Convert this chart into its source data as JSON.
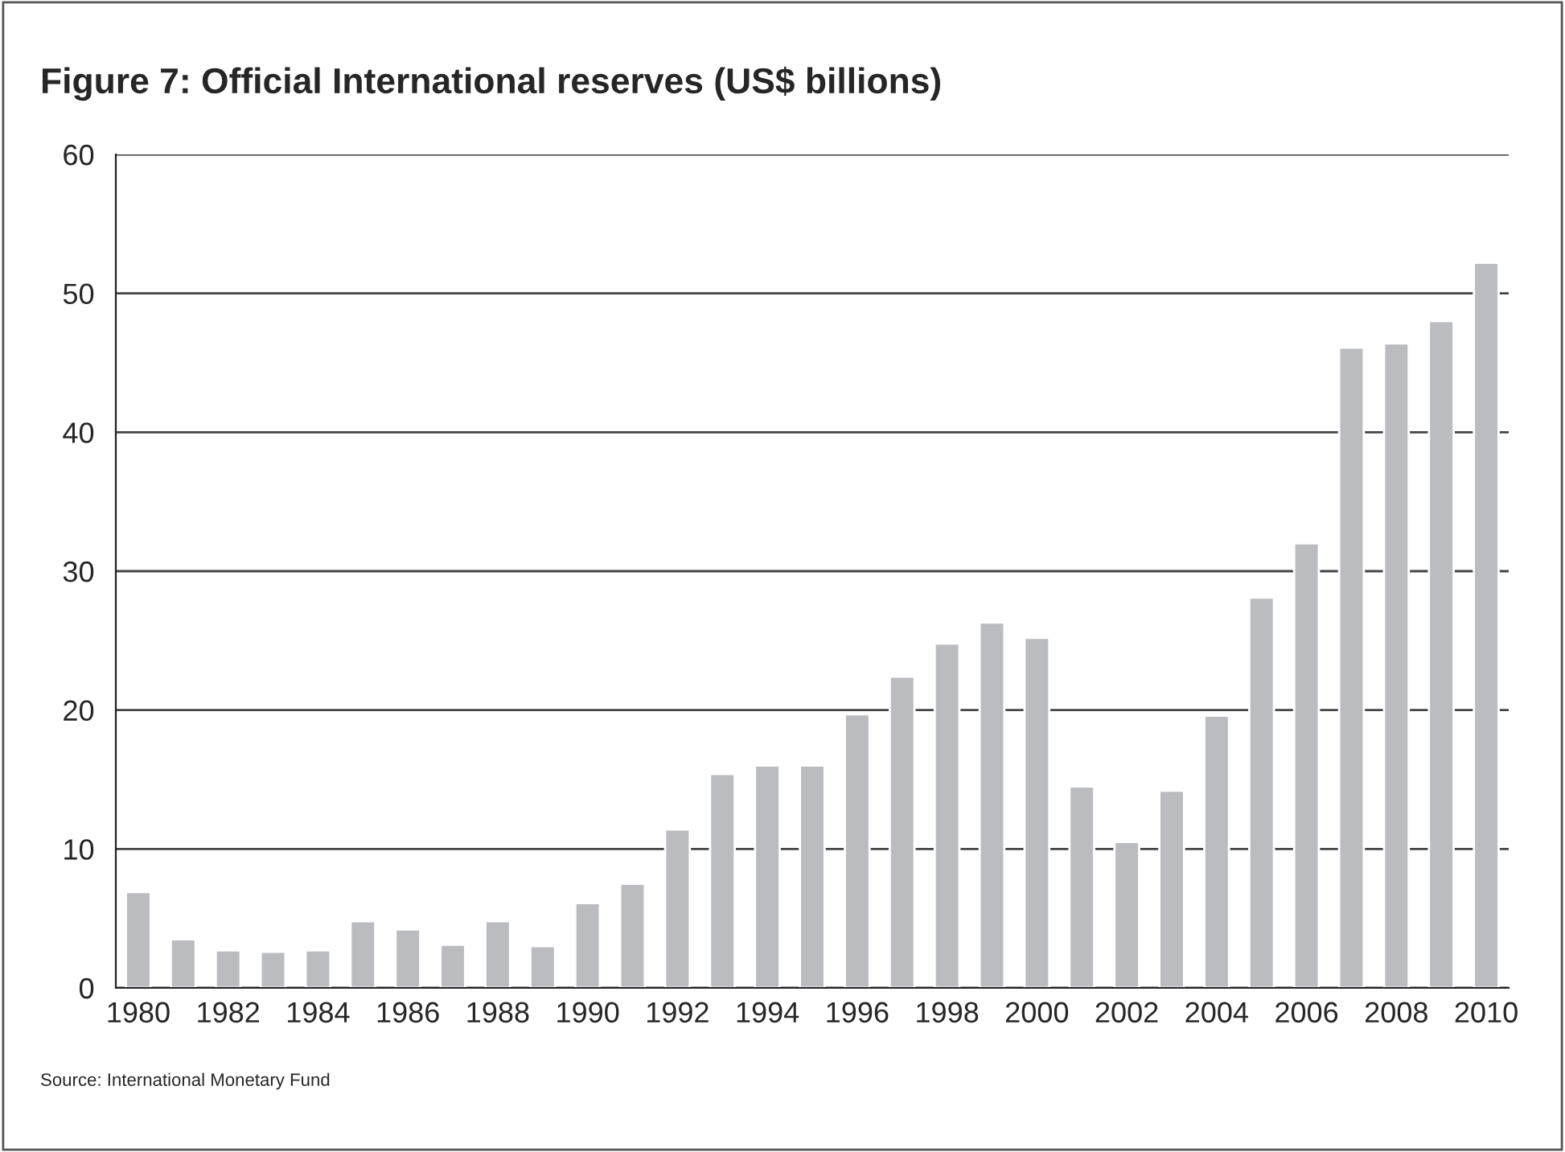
{
  "chart_data": {
    "type": "bar",
    "title": "Figure 7: Official International reserves (US$ billions)",
    "categories": [
      "1980",
      null,
      "1982",
      null,
      "1984",
      null,
      "1986",
      null,
      "1988",
      null,
      "1990",
      null,
      "1992",
      null,
      "1994",
      null,
      "1996",
      null,
      "1998",
      null,
      "2000",
      null,
      "2002",
      null,
      "2004",
      null,
      "2006",
      null,
      "2008",
      null,
      "2010"
    ],
    "values": [
      6.9,
      3.5,
      2.7,
      2.6,
      2.7,
      4.8,
      4.2,
      3.1,
      4.8,
      3.0,
      6.1,
      7.5,
      11.4,
      15.4,
      16.0,
      16.0,
      19.7,
      22.4,
      24.8,
      26.3,
      25.2,
      14.5,
      10.5,
      14.2,
      19.6,
      28.1,
      32.0,
      46.1,
      46.4,
      48.0,
      52.2
    ],
    "color": "#bbbcc0",
    "ylim": [
      0,
      60
    ],
    "yticks": [
      0,
      10,
      20,
      30,
      40,
      50,
      60
    ],
    "grid": "y",
    "annotations": [
      "Source: International Monetary Fund"
    ]
  }
}
